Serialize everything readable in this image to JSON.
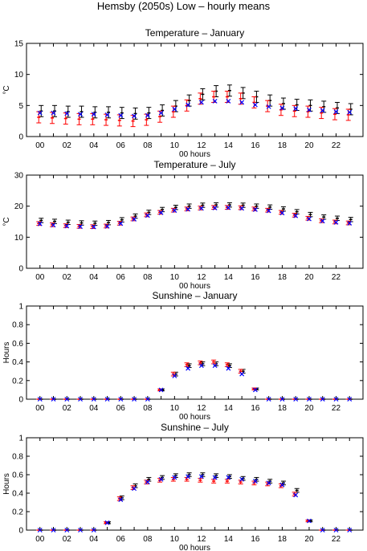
{
  "figure": {
    "title": "Hemsby (2050s) Low – hourly means"
  },
  "colors": {
    "black": "#000000",
    "red": "#ff0000",
    "blue": "#0000ff"
  },
  "chart_data": [
    {
      "type": "scatter",
      "title": "Temperature – January",
      "xlabel": "00 hours",
      "ylabel": "°C",
      "ylim": [
        0,
        15
      ],
      "yticks": [
        "0",
        "5",
        "10",
        "15"
      ],
      "xlim": [
        -1,
        24
      ],
      "xticks": [
        "00",
        "02",
        "04",
        "06",
        "08",
        "10",
        "12",
        "14",
        "16",
        "18",
        "20",
        "22"
      ],
      "x": [
        0,
        1,
        2,
        3,
        4,
        5,
        6,
        7,
        8,
        9,
        10,
        11,
        12,
        13,
        14,
        15,
        16,
        17,
        18,
        19,
        20,
        21,
        22,
        23
      ],
      "series": [
        {
          "color": "black",
          "marker": "errorbar",
          "values": [
            4.1,
            4.1,
            4.0,
            4.0,
            3.9,
            3.9,
            3.8,
            3.7,
            3.8,
            4.2,
            4.9,
            5.8,
            6.8,
            7.3,
            7.4,
            7.0,
            6.4,
            5.8,
            5.3,
            5.1,
            5.0,
            4.8,
            4.6,
            4.4
          ],
          "err": [
            0.9,
            0.9,
            0.9,
            0.9,
            0.9,
            0.9,
            0.9,
            0.9,
            0.9,
            0.9,
            0.9,
            0.9,
            0.9,
            0.9,
            0.9,
            0.9,
            0.9,
            0.9,
            0.9,
            0.9,
            0.9,
            0.9,
            0.9,
            0.9
          ]
        },
        {
          "color": "red",
          "marker": "errorbar",
          "values": [
            3.1,
            3.0,
            2.9,
            2.8,
            2.8,
            2.7,
            2.6,
            2.5,
            2.7,
            3.2,
            4.0,
            5.0,
            6.1,
            6.4,
            6.4,
            6.1,
            5.5,
            4.9,
            4.3,
            4.1,
            4.0,
            3.8,
            3.6,
            3.5
          ],
          "err": [
            0.9,
            0.9,
            0.9,
            0.9,
            0.9,
            0.9,
            0.9,
            0.9,
            0.9,
            0.9,
            0.9,
            0.9,
            0.9,
            0.9,
            0.9,
            0.9,
            0.9,
            0.9,
            0.9,
            0.9,
            0.9,
            0.9,
            0.9,
            0.9
          ]
        },
        {
          "color": "blue",
          "marker": "x",
          "values": [
            3.8,
            3.8,
            3.7,
            3.6,
            3.6,
            3.5,
            3.4,
            3.3,
            3.4,
            3.8,
            4.4,
            5.1,
            5.5,
            5.7,
            5.7,
            5.5,
            5.1,
            4.8,
            4.6,
            4.5,
            4.3,
            4.2,
            4.0,
            3.9
          ]
        }
      ]
    },
    {
      "type": "scatter",
      "title": "Temperature – July",
      "xlabel": "00 hours",
      "ylabel": "°C",
      "ylim": [
        0,
        30
      ],
      "yticks": [
        "0",
        "10",
        "20",
        "30"
      ],
      "xlim": [
        -1,
        24
      ],
      "xticks": [
        "00",
        "02",
        "04",
        "06",
        "08",
        "10",
        "12",
        "14",
        "16",
        "18",
        "20",
        "22"
      ],
      "x": [
        0,
        1,
        2,
        3,
        4,
        5,
        6,
        7,
        8,
        9,
        10,
        11,
        12,
        13,
        14,
        15,
        16,
        17,
        18,
        19,
        20,
        21,
        22,
        23
      ],
      "series": [
        {
          "color": "black",
          "marker": "errorbar",
          "values": [
            15.4,
            15.1,
            14.8,
            14.6,
            14.5,
            14.7,
            15.6,
            16.8,
            18.0,
            18.9,
            19.6,
            20.0,
            20.3,
            20.4,
            20.4,
            20.3,
            20.0,
            19.7,
            19.1,
            18.2,
            17.3,
            16.5,
            16.1,
            15.7
          ],
          "err": [
            0.7,
            0.7,
            0.7,
            0.7,
            0.7,
            0.7,
            0.7,
            0.7,
            0.7,
            0.7,
            0.7,
            0.7,
            0.7,
            0.7,
            0.7,
            0.7,
            0.7,
            0.7,
            0.7,
            0.7,
            0.7,
            0.7,
            0.7,
            0.7
          ]
        },
        {
          "color": "red",
          "marker": "errorbar",
          "values": [
            14.4,
            14.0,
            13.7,
            13.5,
            13.4,
            13.6,
            14.5,
            15.9,
            17.2,
            18.0,
            18.7,
            19.1,
            19.4,
            19.6,
            19.6,
            19.5,
            19.1,
            18.7,
            18.0,
            17.1,
            16.1,
            15.3,
            14.9,
            14.6
          ],
          "err": [
            0.6,
            0.6,
            0.6,
            0.6,
            0.6,
            0.6,
            0.6,
            0.6,
            0.6,
            0.6,
            0.6,
            0.6,
            0.6,
            0.6,
            0.6,
            0.6,
            0.6,
            0.6,
            0.6,
            0.6,
            0.6,
            0.6,
            0.6,
            0.6
          ]
        },
        {
          "color": "blue",
          "marker": "x",
          "values": [
            14.3,
            13.9,
            13.6,
            13.4,
            13.3,
            13.5,
            14.4,
            15.8,
            17.0,
            17.9,
            18.6,
            19.0,
            19.3,
            19.4,
            19.5,
            19.3,
            18.9,
            18.5,
            17.8,
            16.9,
            15.9,
            15.2,
            14.8,
            14.5
          ]
        }
      ]
    },
    {
      "type": "scatter",
      "title": "Sunshine – January",
      "xlabel": "00 hours",
      "ylabel": "Hours",
      "ylim": [
        0,
        1
      ],
      "yticks": [
        "0",
        "0.2",
        "0.4",
        "0.6",
        "0.8",
        "1"
      ],
      "xlim": [
        -1,
        24
      ],
      "xticks": [
        "00",
        "02",
        "04",
        "06",
        "08",
        "10",
        "12",
        "14",
        "16",
        "18",
        "20",
        "22"
      ],
      "x": [
        0,
        1,
        2,
        3,
        4,
        5,
        6,
        7,
        8,
        9,
        10,
        11,
        12,
        13,
        14,
        15,
        16,
        17,
        18,
        19,
        20,
        21,
        22,
        23
      ],
      "series": [
        {
          "color": "black",
          "marker": "errorbar",
          "values": [
            0,
            0,
            0,
            0,
            0,
            0,
            0,
            0,
            0,
            0.1,
            0.27,
            0.36,
            0.38,
            0.38,
            0.36,
            0.3,
            0.11,
            0,
            0,
            0,
            0,
            0,
            0,
            0
          ],
          "err": [
            0,
            0,
            0,
            0,
            0,
            0,
            0,
            0,
            0,
            0.01,
            0.02,
            0.02,
            0.02,
            0.02,
            0.02,
            0.02,
            0.01,
            0,
            0,
            0,
            0,
            0,
            0,
            0
          ]
        },
        {
          "color": "red",
          "marker": "errorbar",
          "values": [
            0,
            0,
            0,
            0,
            0,
            0,
            0,
            0,
            0,
            0.1,
            0.27,
            0.37,
            0.39,
            0.4,
            0.37,
            0.3,
            0.11,
            0,
            0,
            0,
            0,
            0,
            0,
            0
          ],
          "err": [
            0,
            0,
            0,
            0,
            0,
            0,
            0,
            0,
            0,
            0.01,
            0.02,
            0.02,
            0.02,
            0.02,
            0.02,
            0.02,
            0.01,
            0,
            0,
            0,
            0,
            0,
            0,
            0
          ]
        },
        {
          "color": "blue",
          "marker": "x",
          "values": [
            0,
            0,
            0,
            0,
            0,
            0,
            0,
            0,
            0,
            0.1,
            0.25,
            0.33,
            0.36,
            0.36,
            0.33,
            0.27,
            0.1,
            0,
            0,
            0,
            0,
            0,
            0,
            0
          ]
        }
      ]
    },
    {
      "type": "scatter",
      "title": "Sunshine – July",
      "xlabel": "00 hours",
      "ylabel": "Hours",
      "ylim": [
        0,
        1
      ],
      "yticks": [
        "0",
        "0.2",
        "0.4",
        "0.6",
        "0.8",
        "1"
      ],
      "xlim": [
        -1,
        24
      ],
      "xticks": [
        "00",
        "02",
        "04",
        "06",
        "08",
        "10",
        "12",
        "14",
        "16",
        "18",
        "20",
        "22"
      ],
      "x": [
        0,
        1,
        2,
        3,
        4,
        5,
        6,
        7,
        8,
        9,
        10,
        11,
        12,
        13,
        14,
        15,
        16,
        17,
        18,
        19,
        20,
        21,
        22,
        23
      ],
      "series": [
        {
          "color": "black",
          "marker": "errorbar",
          "values": [
            0,
            0,
            0,
            0,
            0,
            0.08,
            0.35,
            0.48,
            0.55,
            0.57,
            0.59,
            0.6,
            0.6,
            0.59,
            0.58,
            0.56,
            0.55,
            0.53,
            0.51,
            0.43,
            0.1,
            0,
            0,
            0
          ],
          "err": [
            0,
            0,
            0,
            0,
            0,
            0.01,
            0.02,
            0.02,
            0.02,
            0.02,
            0.02,
            0.02,
            0.02,
            0.02,
            0.02,
            0.02,
            0.02,
            0.02,
            0.02,
            0.02,
            0.01,
            0,
            0,
            0
          ]
        },
        {
          "color": "red",
          "marker": "errorbar",
          "values": [
            0,
            0,
            0,
            0,
            0,
            0.08,
            0.34,
            0.46,
            0.52,
            0.54,
            0.55,
            0.55,
            0.54,
            0.53,
            0.53,
            0.52,
            0.51,
            0.5,
            0.48,
            0.39,
            0.1,
            0,
            0,
            0
          ],
          "err": [
            0,
            0,
            0,
            0,
            0,
            0.01,
            0.02,
            0.02,
            0.02,
            0.02,
            0.02,
            0.02,
            0.02,
            0.02,
            0.02,
            0.02,
            0.02,
            0.02,
            0.02,
            0.02,
            0.01,
            0,
            0,
            0
          ]
        },
        {
          "color": "blue",
          "marker": "x",
          "values": [
            0,
            0,
            0,
            0,
            0,
            0.08,
            0.33,
            0.45,
            0.52,
            0.55,
            0.57,
            0.58,
            0.58,
            0.57,
            0.57,
            0.55,
            0.53,
            0.51,
            0.49,
            0.38,
            0.1,
            0,
            0,
            0
          ]
        }
      ]
    }
  ]
}
